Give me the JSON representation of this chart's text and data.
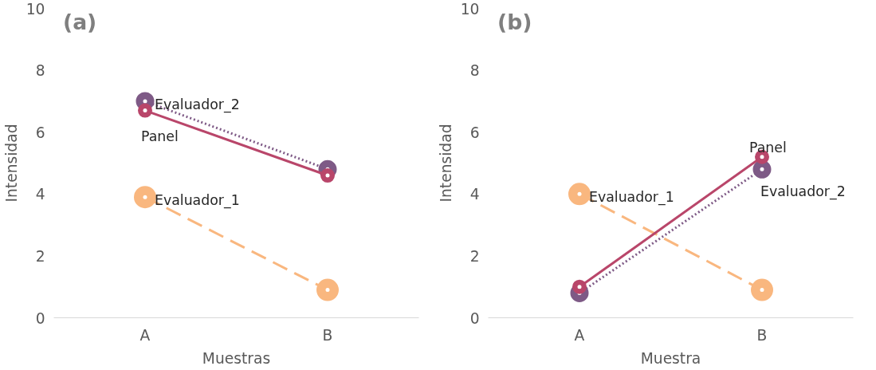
{
  "chart_data": [
    {
      "type": "line",
      "title": "(a)",
      "xlabel": "Muestras",
      "ylabel": "Intensidad",
      "categories": [
        "A",
        "B"
      ],
      "ylim": [
        0,
        10
      ],
      "yticks": [
        0,
        2,
        4,
        6,
        8,
        10
      ],
      "grid": false,
      "legend": false,
      "marker": "circle",
      "series": [
        {
          "name": "Evaluador_1",
          "color": "#f9b77f",
          "values": [
            3.9,
            0.9
          ],
          "line_style": "dashed"
        },
        {
          "name": "Evaluador_2",
          "color": "#7e5a86",
          "values": [
            7.0,
            4.8
          ],
          "line_style": "dotted"
        },
        {
          "name": "Panel",
          "color": "#b9466a",
          "values": [
            6.7,
            4.6
          ],
          "line_style": "solid"
        }
      ]
    },
    {
      "type": "line",
      "title": "(b)",
      "xlabel": "Muestra",
      "ylabel": "Intensidad",
      "categories": [
        "A",
        "B"
      ],
      "ylim": [
        0,
        10
      ],
      "yticks": [
        0,
        2,
        4,
        6,
        8,
        10
      ],
      "grid": false,
      "legend": false,
      "marker": "circle",
      "series": [
        {
          "name": "Evaluador_1",
          "color": "#f9b77f",
          "values": [
            4.0,
            0.9
          ],
          "line_style": "dashed"
        },
        {
          "name": "Evaluador_2",
          "color": "#7e5a86",
          "values": [
            0.8,
            4.8
          ],
          "line_style": "dotted"
        },
        {
          "name": "Panel",
          "color": "#b9466a",
          "values": [
            1.0,
            5.2
          ],
          "line_style": "solid"
        }
      ]
    }
  ]
}
